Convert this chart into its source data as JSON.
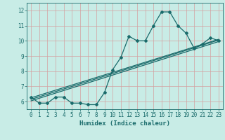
{
  "xlabel": "Humidex (Indice chaleur)",
  "ylabel": "",
  "xlim": [
    -0.5,
    23.5
  ],
  "ylim": [
    5.5,
    12.5
  ],
  "xticks": [
    0,
    1,
    2,
    3,
    4,
    5,
    6,
    7,
    8,
    9,
    10,
    11,
    12,
    13,
    14,
    15,
    16,
    17,
    18,
    19,
    20,
    21,
    22,
    23
  ],
  "yticks": [
    6,
    7,
    8,
    9,
    10,
    11,
    12
  ],
  "bg_color": "#c8ece6",
  "grid_color": "#d4a0a0",
  "line_color": "#1a6b6b",
  "line1_x": [
    0,
    1,
    2,
    3,
    4,
    5,
    6,
    7,
    8,
    9,
    10,
    11,
    12,
    13,
    14,
    15,
    16,
    17,
    18,
    19,
    20,
    21,
    22,
    23
  ],
  "line1_y": [
    6.3,
    5.9,
    5.9,
    6.3,
    6.3,
    5.9,
    5.9,
    5.8,
    5.8,
    6.6,
    8.1,
    8.9,
    10.3,
    10.0,
    10.0,
    11.0,
    11.9,
    11.9,
    11.0,
    10.5,
    9.5,
    9.8,
    10.2,
    10.0
  ],
  "line2_x": [
    0,
    23
  ],
  "line2_y": [
    6.15,
    10.05
  ],
  "line3_x": [
    0,
    23
  ],
  "line3_y": [
    6.25,
    10.1
  ],
  "line4_x": [
    0,
    23
  ],
  "line4_y": [
    6.05,
    9.95
  ]
}
